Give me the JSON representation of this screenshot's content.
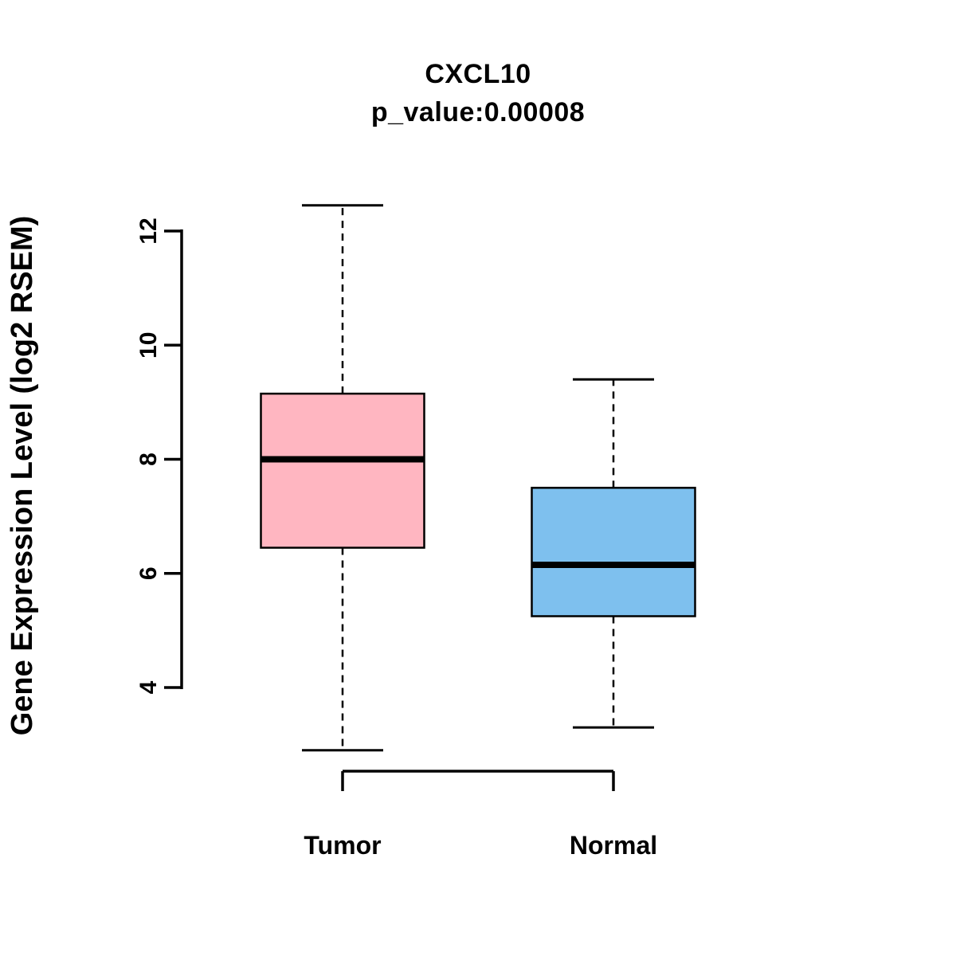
{
  "chart_data": {
    "type": "boxplot",
    "title": "CXCL10",
    "subtitle": "p_value:0.00008",
    "ylabel": "Gene Expression Level (log2 RSEM)",
    "xlabel": "",
    "yticks": [
      4,
      6,
      8,
      10,
      12
    ],
    "ylim": [
      2.6,
      12.7
    ],
    "grid": "off",
    "legend": "none",
    "categories": [
      "Tumor",
      "Normal"
    ],
    "series": [
      {
        "name": "Tumor",
        "color": "#FFB6C1",
        "whisker_low": 2.9,
        "q1": 6.45,
        "median": 8.0,
        "q3": 9.15,
        "whisker_high": 12.45
      },
      {
        "name": "Normal",
        "color": "#7EC0EE",
        "whisker_low": 3.3,
        "q1": 5.25,
        "median": 6.15,
        "q3": 7.5,
        "whisker_high": 9.4
      }
    ],
    "axis_color": "#000000"
  }
}
